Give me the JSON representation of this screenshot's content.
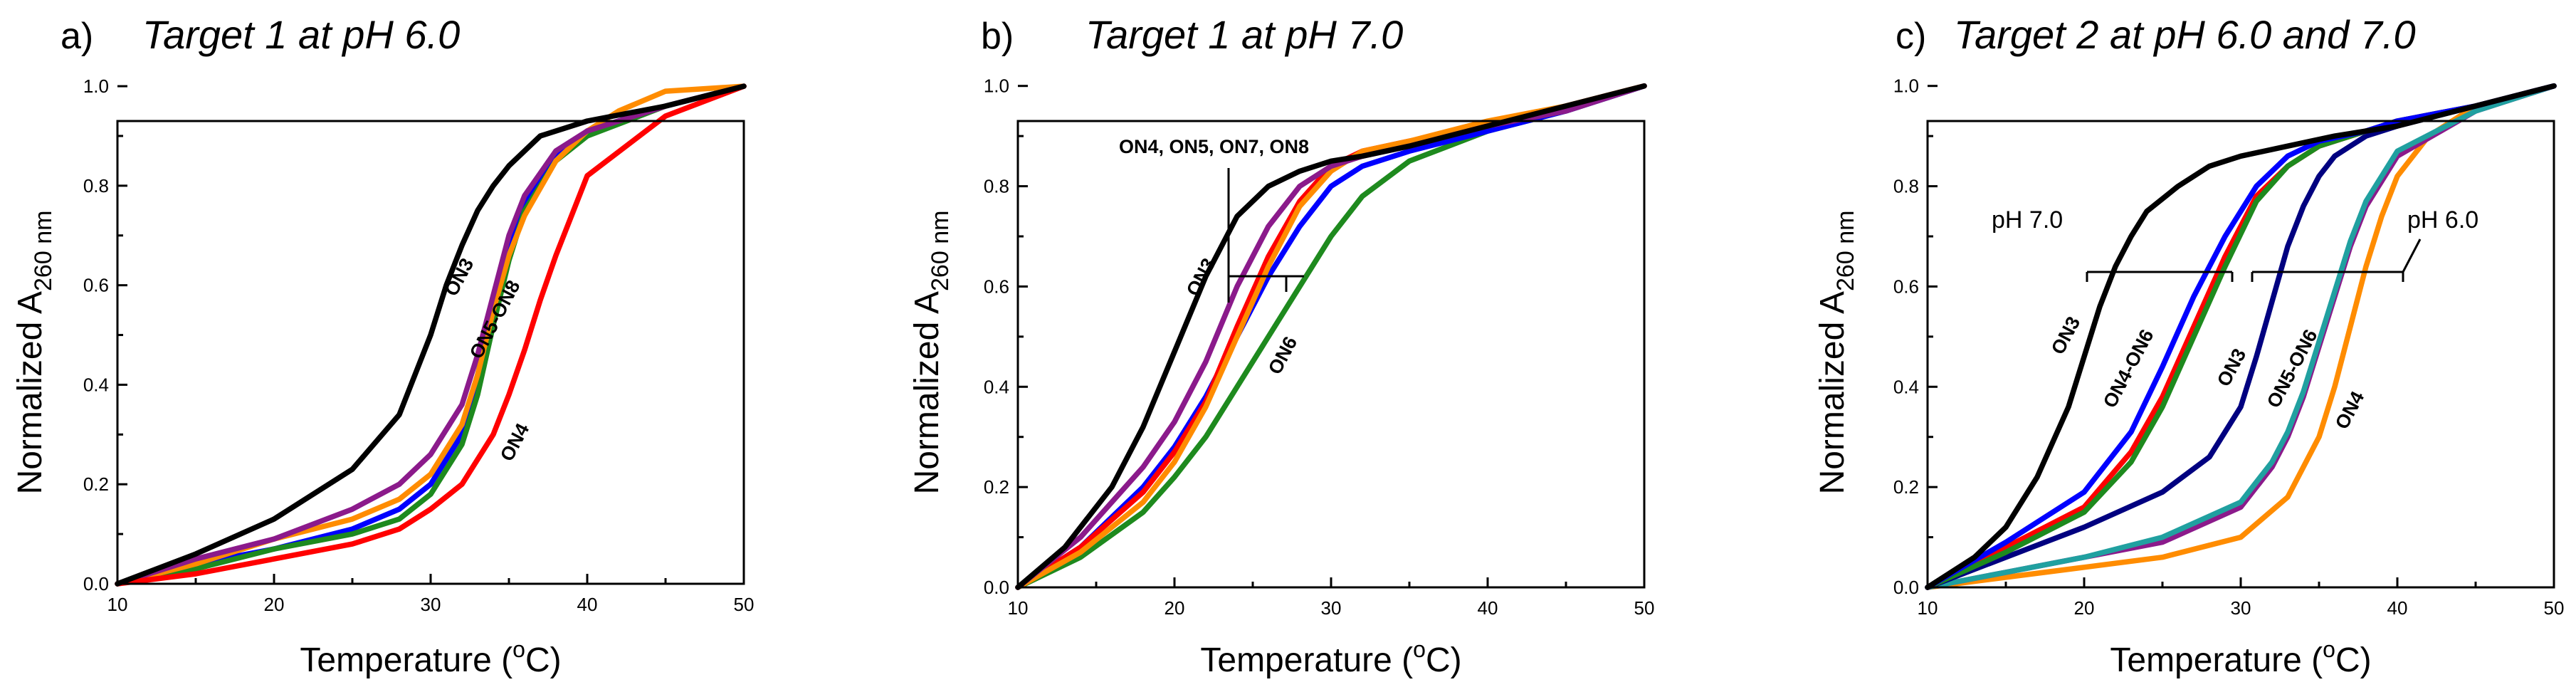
{
  "chart_data": [
    {
      "type": "line",
      "letter": "a)",
      "title": "Target 1 at pH 6.0",
      "xlabel": "Temperature (",
      "xlabel_sup": "o",
      "xlabel_end": "C)",
      "ylabel": "Normalized A",
      "ylabel_sub": "260 nm",
      "xlim": [
        10,
        50
      ],
      "ylim": [
        0,
        1.0
      ],
      "xticks": [
        "10",
        "20",
        "30",
        "40",
        "50"
      ],
      "yticks": [
        "0.0",
        "0.2",
        "0.4",
        "0.6",
        "0.8",
        "1.0"
      ],
      "series": [
        {
          "color": "#0000ff",
          "x": [
            10,
            15,
            20,
            25,
            28,
            30,
            32,
            33,
            34,
            35,
            36,
            38,
            40,
            45,
            50
          ],
          "y": [
            0,
            0.04,
            0.07,
            0.11,
            0.15,
            0.2,
            0.3,
            0.42,
            0.56,
            0.68,
            0.77,
            0.86,
            0.91,
            0.96,
            1.0
          ]
        },
        {
          "color": "#1e8a1e",
          "x": [
            10,
            15,
            20,
            25,
            28,
            30,
            32,
            33,
            34,
            35,
            36,
            38,
            40,
            45,
            50
          ],
          "y": [
            0,
            0.03,
            0.07,
            0.1,
            0.13,
            0.18,
            0.28,
            0.38,
            0.52,
            0.65,
            0.75,
            0.85,
            0.9,
            0.96,
            1.0
          ]
        },
        {
          "color": "#ff8c00",
          "x": [
            10,
            15,
            20,
            25,
            28,
            30,
            32,
            33,
            34,
            35,
            36,
            38,
            40,
            42,
            45,
            50
          ],
          "y": [
            0,
            0.04,
            0.09,
            0.13,
            0.17,
            0.22,
            0.32,
            0.42,
            0.55,
            0.66,
            0.74,
            0.85,
            0.91,
            0.95,
            0.99,
            1.0
          ]
        },
        {
          "color": "#8b1a8b",
          "x": [
            10,
            15,
            20,
            25,
            28,
            30,
            32,
            33,
            34,
            35,
            36,
            38,
            40,
            45,
            50
          ],
          "y": [
            0,
            0.05,
            0.09,
            0.15,
            0.2,
            0.26,
            0.36,
            0.46,
            0.58,
            0.7,
            0.78,
            0.87,
            0.91,
            0.96,
            1.0
          ]
        },
        {
          "color": "#ff0000",
          "x": [
            10,
            15,
            20,
            25,
            28,
            30,
            32,
            33,
            34,
            35,
            36,
            37,
            38,
            40,
            45,
            50
          ],
          "y": [
            0,
            0.02,
            0.05,
            0.08,
            0.11,
            0.15,
            0.2,
            0.25,
            0.3,
            0.38,
            0.47,
            0.57,
            0.66,
            0.82,
            0.94,
            1.0
          ]
        },
        {
          "color": "#000000",
          "x": [
            10,
            15,
            20,
            25,
            28,
            30,
            31,
            32,
            33,
            34,
            35,
            37,
            40,
            45,
            50
          ],
          "y": [
            0,
            0.06,
            0.13,
            0.23,
            0.34,
            0.5,
            0.6,
            0.68,
            0.75,
            0.8,
            0.84,
            0.9,
            0.93,
            0.96,
            1.0
          ]
        }
      ],
      "annotations": [
        "ON3",
        "ON5-ON8",
        "ON4"
      ]
    },
    {
      "type": "line",
      "letter": "b)",
      "title": "Target 1 at pH 7.0",
      "xlabel": "Temperature (",
      "xlabel_sup": "o",
      "xlabel_end": "C)",
      "ylabel": "Normalized A",
      "ylabel_sub": "260 nm",
      "xlim": [
        10,
        50
      ],
      "ylim": [
        0,
        1.0
      ],
      "xticks": [
        "10",
        "20",
        "30",
        "40",
        "50"
      ],
      "yticks": [
        "0.0",
        "0.2",
        "0.4",
        "0.6",
        "0.8",
        "1.0"
      ],
      "series": [
        {
          "color": "#1e8a1e",
          "x": [
            10,
            14,
            18,
            20,
            22,
            24,
            26,
            28,
            30,
            32,
            35,
            40,
            45,
            50
          ],
          "y": [
            0,
            0.06,
            0.15,
            0.22,
            0.3,
            0.4,
            0.5,
            0.6,
            0.7,
            0.78,
            0.85,
            0.91,
            0.95,
            1.0
          ]
        },
        {
          "color": "#0000ff",
          "x": [
            10,
            14,
            18,
            20,
            22,
            24,
            26,
            28,
            30,
            32,
            35,
            40,
            45,
            50
          ],
          "y": [
            0,
            0.08,
            0.2,
            0.28,
            0.38,
            0.5,
            0.62,
            0.72,
            0.8,
            0.84,
            0.87,
            0.91,
            0.95,
            1.0
          ]
        },
        {
          "color": "#ff0000",
          "x": [
            10,
            14,
            18,
            20,
            22,
            24,
            26,
            28,
            30,
            32,
            35,
            40,
            45,
            50
          ],
          "y": [
            0,
            0.08,
            0.19,
            0.27,
            0.37,
            0.52,
            0.66,
            0.77,
            0.84,
            0.87,
            0.89,
            0.92,
            0.96,
            1.0
          ]
        },
        {
          "color": "#ff8c00",
          "x": [
            10,
            14,
            18,
            20,
            22,
            24,
            26,
            28,
            30,
            32,
            35,
            40,
            45,
            50
          ],
          "y": [
            0,
            0.07,
            0.17,
            0.25,
            0.36,
            0.5,
            0.64,
            0.76,
            0.83,
            0.87,
            0.89,
            0.93,
            0.96,
            1.0
          ]
        },
        {
          "color": "#8b1a8b",
          "x": [
            10,
            14,
            18,
            20,
            22,
            24,
            26,
            28,
            30,
            32,
            35,
            40,
            45,
            50
          ],
          "y": [
            0,
            0.1,
            0.24,
            0.33,
            0.45,
            0.6,
            0.72,
            0.8,
            0.84,
            0.86,
            0.88,
            0.92,
            0.95,
            1.0
          ]
        },
        {
          "color": "#000000",
          "x": [
            10,
            13,
            16,
            18,
            20,
            22,
            24,
            26,
            28,
            30,
            32,
            35,
            40,
            45,
            50
          ],
          "y": [
            0,
            0.08,
            0.2,
            0.32,
            0.47,
            0.62,
            0.74,
            0.8,
            0.83,
            0.85,
            0.86,
            0.88,
            0.92,
            0.96,
            1.0
          ]
        }
      ],
      "annotations": [
        "ON4, ON5, ON7, ON8",
        "ON3",
        "ON6"
      ]
    },
    {
      "type": "line",
      "letter": "c)",
      "title": "Target 2 at pH 6.0 and 7.0",
      "xlabel": "Temperature (",
      "xlabel_sup": "o",
      "xlabel_end": "C)",
      "ylabel": "Normalized A",
      "ylabel_sub": "260 nm",
      "xlim": [
        10,
        50
      ],
      "ylim": [
        0,
        1.0
      ],
      "xticks": [
        "10",
        "20",
        "30",
        "40",
        "50"
      ],
      "yticks": [
        "0.0",
        "0.2",
        "0.4",
        "0.6",
        "0.8",
        "1.0"
      ],
      "series": [
        {
          "color": "#ff8c00",
          "x": [
            10,
            15,
            20,
            25,
            30,
            33,
            35,
            36,
            37,
            38,
            39,
            40,
            42,
            45,
            50
          ],
          "y": [
            0,
            0.02,
            0.04,
            0.06,
            0.1,
            0.18,
            0.3,
            0.4,
            0.52,
            0.64,
            0.74,
            0.82,
            0.9,
            0.96,
            1.0
          ]
        },
        {
          "color": "#8b1a8b",
          "x": [
            10,
            15,
            20,
            25,
            30,
            32,
            33,
            34,
            35,
            36,
            37,
            38,
            40,
            45,
            50
          ],
          "y": [
            0,
            0.03,
            0.06,
            0.09,
            0.16,
            0.24,
            0.3,
            0.38,
            0.48,
            0.58,
            0.68,
            0.76,
            0.86,
            0.95,
            1.0
          ]
        },
        {
          "color": "#20a0a0",
          "x": [
            10,
            15,
            20,
            25,
            30,
            32,
            33,
            34,
            35,
            36,
            37,
            38,
            40,
            45,
            50
          ],
          "y": [
            0,
            0.03,
            0.06,
            0.1,
            0.17,
            0.25,
            0.31,
            0.39,
            0.49,
            0.59,
            0.69,
            0.77,
            0.87,
            0.95,
            1.0
          ]
        },
        {
          "color": "#000080",
          "x": [
            10,
            15,
            20,
            25,
            28,
            30,
            31,
            32,
            33,
            34,
            35,
            36,
            38,
            40,
            45,
            50
          ],
          "y": [
            0,
            0.06,
            0.12,
            0.19,
            0.26,
            0.36,
            0.46,
            0.57,
            0.68,
            0.76,
            0.82,
            0.86,
            0.9,
            0.92,
            0.96,
            1.0
          ]
        },
        {
          "color": "#ff0000",
          "x": [
            10,
            15,
            20,
            23,
            25,
            27,
            29,
            31,
            33,
            35,
            38,
            40,
            45,
            50
          ],
          "y": [
            0,
            0.08,
            0.16,
            0.27,
            0.38,
            0.52,
            0.66,
            0.78,
            0.84,
            0.88,
            0.91,
            0.93,
            0.96,
            1.0
          ]
        },
        {
          "color": "#1e8a1e",
          "x": [
            10,
            15,
            20,
            23,
            25,
            27,
            29,
            31,
            33,
            35,
            38,
            40,
            45,
            50
          ],
          "y": [
            0,
            0.07,
            0.15,
            0.25,
            0.36,
            0.5,
            0.64,
            0.77,
            0.84,
            0.88,
            0.91,
            0.93,
            0.96,
            1.0
          ]
        },
        {
          "color": "#0000ff",
          "x": [
            10,
            15,
            20,
            23,
            25,
            27,
            29,
            31,
            33,
            35,
            38,
            40,
            45,
            50
          ],
          "y": [
            0,
            0.09,
            0.19,
            0.31,
            0.44,
            0.58,
            0.7,
            0.8,
            0.86,
            0.89,
            0.91,
            0.93,
            0.96,
            1.0
          ]
        },
        {
          "color": "#000000",
          "x": [
            10,
            13,
            15,
            17,
            19,
            20,
            21,
            22,
            23,
            24,
            26,
            28,
            30,
            33,
            36,
            40,
            45,
            50
          ],
          "y": [
            0,
            0.06,
            0.12,
            0.22,
            0.36,
            0.46,
            0.56,
            0.64,
            0.7,
            0.75,
            0.8,
            0.84,
            0.86,
            0.88,
            0.9,
            0.92,
            0.96,
            1.0
          ]
        }
      ],
      "annotations": [
        "pH 7.0",
        "pH 6.0",
        "ON3",
        "ON4-ON6",
        "ON3",
        "ON5-ON6",
        "ON4"
      ]
    }
  ]
}
